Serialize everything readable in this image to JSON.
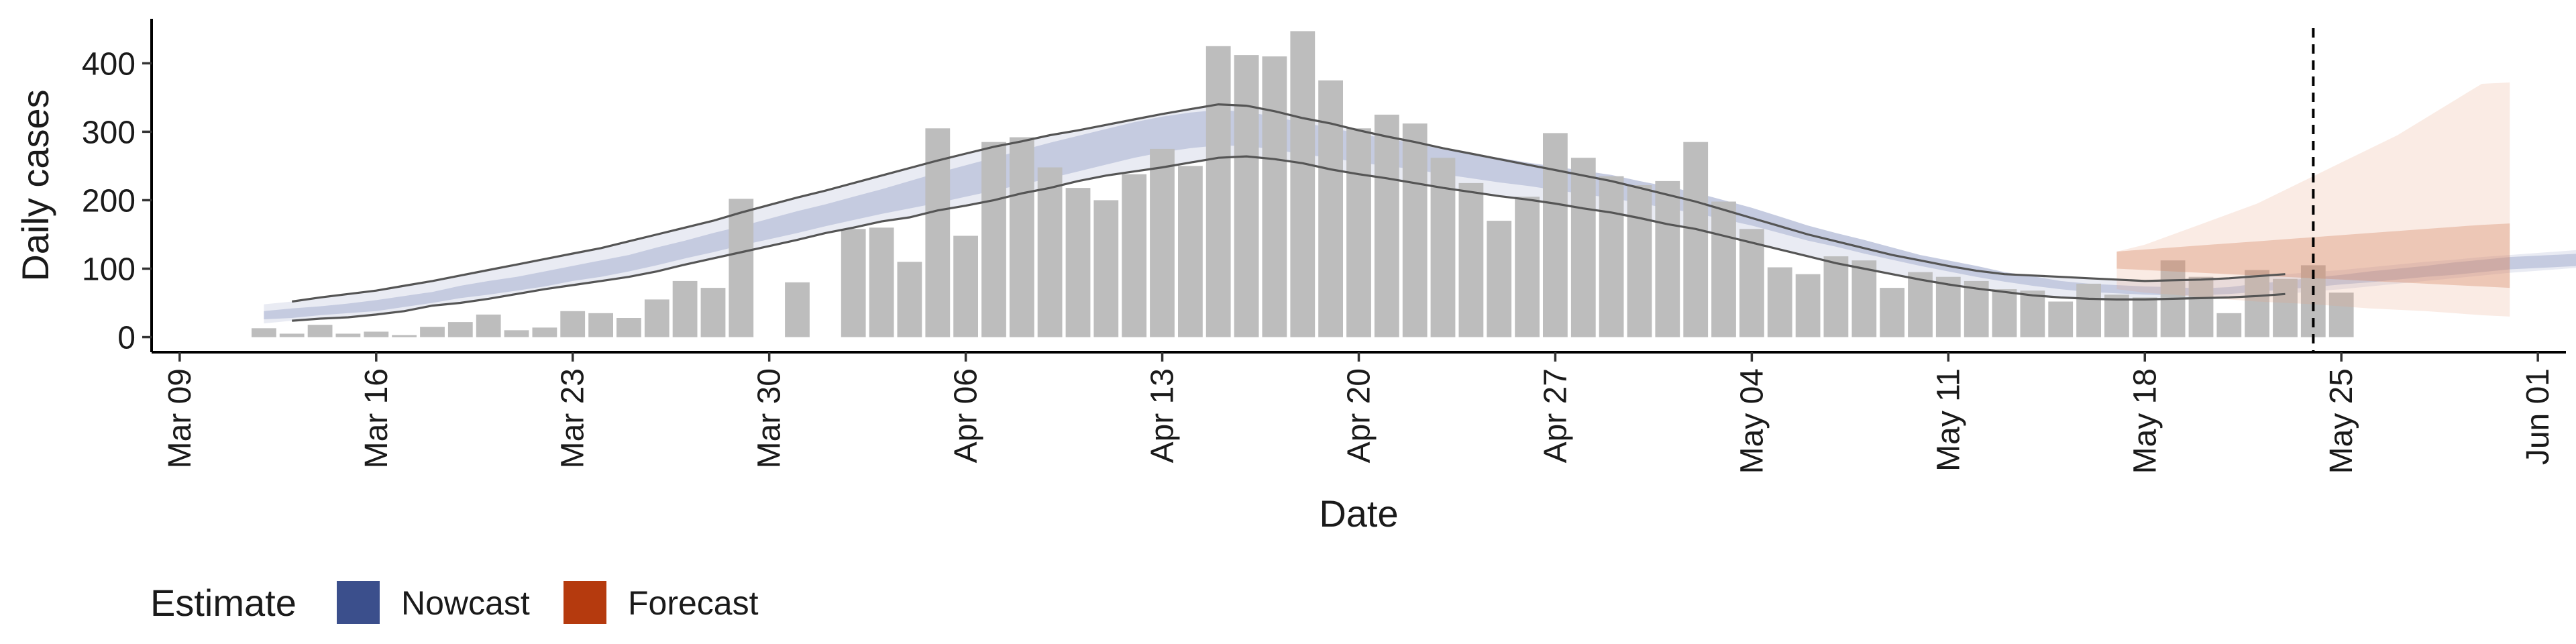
{
  "chart_data": {
    "type": "bar",
    "xlabel": "Date",
    "ylabel": "Daily cases",
    "ylim": [
      -22,
      465
    ],
    "x_domain": [
      "2020-03-08",
      "2020-06-02"
    ],
    "y_ticks": [
      0,
      100,
      200,
      300,
      400
    ],
    "x_ticks": [
      {
        "date": "2020-03-09",
        "label": "Mar 09"
      },
      {
        "date": "2020-03-16",
        "label": "Mar 16"
      },
      {
        "date": "2020-03-23",
        "label": "Mar 23"
      },
      {
        "date": "2020-03-30",
        "label": "Mar 30"
      },
      {
        "date": "2020-04-06",
        "label": "Apr 06"
      },
      {
        "date": "2020-04-13",
        "label": "Apr 13"
      },
      {
        "date": "2020-04-20",
        "label": "Apr 20"
      },
      {
        "date": "2020-04-27",
        "label": "Apr 27"
      },
      {
        "date": "2020-05-04",
        "label": "May 04"
      },
      {
        "date": "2020-05-11",
        "label": "May 11"
      },
      {
        "date": "2020-05-18",
        "label": "May 18"
      },
      {
        "date": "2020-05-25",
        "label": "May 25"
      },
      {
        "date": "2020-06-01",
        "label": "Jun 01"
      }
    ],
    "observed_cases": {
      "first_date": "2020-03-12",
      "values": [
        13,
        5,
        18,
        5,
        8,
        3,
        15,
        22,
        33,
        10,
        14,
        38,
        35,
        28,
        55,
        82,
        72,
        202,
        0,
        80,
        0,
        158,
        160,
        110,
        305,
        148,
        285,
        292,
        248,
        218,
        200,
        238,
        275,
        250,
        425,
        412,
        410,
        447,
        375,
        305,
        325,
        312,
        262,
        225,
        170,
        205,
        298,
        262,
        235,
        222,
        228,
        285,
        198,
        158,
        102,
        92,
        118,
        112,
        72,
        95,
        88,
        82,
        70,
        68,
        52,
        78,
        62,
        58,
        112,
        88,
        35,
        98,
        85,
        105,
        65
      ]
    },
    "series": [
      {
        "name": "Nowcast",
        "color": "#3B4F8C",
        "start_date": "2020-03-12",
        "median": [
          32,
          35,
          38,
          42,
          46,
          52,
          58,
          66,
          72,
          78,
          85,
          93,
          100,
          108,
          118,
          128,
          138,
          148,
          158,
          168,
          178,
          188,
          198,
          208,
          218,
          228,
          238,
          248,
          258,
          268,
          278,
          288,
          296,
          302,
          306,
          304,
          298,
          290,
          284,
          276,
          270,
          264,
          256,
          250,
          244,
          238,
          232,
          226,
          220,
          212,
          204,
          196,
          186,
          176,
          164,
          152,
          142,
          132,
          122,
          112,
          104,
          96,
          88,
          82,
          76,
          72,
          70,
          68,
          67,
          66,
          68,
          72,
          76,
          80,
          84,
          88,
          92,
          96,
          100,
          104,
          108,
          110,
          112,
          114,
          116,
          118,
          120,
          122
        ],
        "inner_low": [
          26,
          28,
          32,
          35,
          38,
          44,
          50,
          57,
          62,
          68,
          74,
          82,
          88,
          96,
          105,
          115,
          124,
          134,
          143,
          152,
          162,
          171,
          180,
          188,
          196,
          205,
          214,
          223,
          232,
          242,
          252,
          262,
          270,
          276,
          280,
          279,
          274,
          267,
          262,
          255,
          250,
          245,
          238,
          232,
          226,
          221,
          215,
          209,
          203,
          196,
          188,
          181,
          172,
          163,
          152,
          141,
          132,
          122,
          113,
          104,
          96,
          88,
          81,
          75,
          70,
          66,
          64,
          62,
          61,
          61,
          63,
          66,
          70,
          73,
          77,
          80,
          84,
          88,
          91,
          95,
          99,
          101,
          103,
          105,
          106,
          108,
          110,
          112
        ],
        "inner_high": [
          38,
          42,
          45,
          49,
          54,
          60,
          66,
          75,
          82,
          88,
          96,
          104,
          112,
          120,
          131,
          141,
          152,
          162,
          173,
          184,
          194,
          205,
          216,
          228,
          240,
          251,
          262,
          273,
          284,
          294,
          304,
          314,
          322,
          328,
          332,
          329,
          322,
          313,
          306,
          297,
          290,
          283,
          274,
          268,
          262,
          255,
          249,
          243,
          237,
          228,
          220,
          211,
          200,
          189,
          176,
          163,
          152,
          142,
          131,
          120,
          112,
          104,
          95,
          89,
          82,
          78,
          76,
          74,
          73,
          71,
          73,
          78,
          82,
          87,
          91,
          96,
          100,
          104,
          109,
          113,
          117,
          119,
          121,
          123,
          126,
          128,
          130,
          132
        ],
        "outer_low": [
          20,
          24,
          27,
          29,
          33,
          38,
          46,
          50,
          56,
          63,
          70,
          76,
          82,
          88,
          96,
          106,
          115,
          124,
          133,
          142,
          152,
          160,
          169,
          175,
          185,
          192,
          200,
          210,
          218,
          228,
          236,
          242,
          248,
          255,
          262,
          264,
          260,
          254,
          245,
          238,
          232,
          225,
          218,
          212,
          206,
          201,
          195,
          188,
          182,
          174,
          165,
          158,
          148,
          138,
          128,
          118,
          108,
          100,
          92,
          84,
          77,
          71,
          66,
          61,
          58,
          56,
          55,
          55,
          56,
          57,
          58,
          60,
          63,
          67,
          70,
          74,
          78,
          82,
          86,
          90,
          94,
          97,
          100,
          103,
          106,
          108,
          110,
          112
        ],
        "outer_high": [
          48,
          52,
          58,
          63,
          68,
          75,
          82,
          90,
          98,
          106,
          114,
          122,
          130,
          140,
          150,
          160,
          170,
          182,
          193,
          204,
          214,
          225,
          236,
          247,
          258,
          268,
          278,
          286,
          295,
          302,
          310,
          318,
          326,
          333,
          340,
          338,
          330,
          320,
          312,
          302,
          293,
          285,
          276,
          268,
          260,
          252,
          244,
          236,
          228,
          218,
          208,
          198,
          186,
          174,
          162,
          150,
          140,
          130,
          120,
          112,
          104,
          97,
          92,
          90,
          88,
          86,
          84,
          82,
          83,
          84,
          86,
          89,
          92,
          95,
          98,
          102,
          106,
          110,
          113,
          117,
          120,
          123,
          126,
          129,
          132,
          135,
          138,
          140
        ],
        "outer_stroke_start": "2020-03-13",
        "outer_stroke_len": 72
      },
      {
        "name": "Forecast",
        "color": "#B53A0E",
        "start_date": "2020-05-17",
        "outer_low": [
          70,
          65,
          62,
          58,
          55,
          52,
          50,
          48,
          45,
          42,
          40,
          38,
          35,
          32,
          30
        ],
        "outer_high": [
          125,
          135,
          150,
          165,
          180,
          195,
          215,
          235,
          255,
          275,
          295,
          320,
          345,
          370,
          372
        ],
        "inner_low": [
          100,
          98,
          96,
          94,
          92,
          90,
          88,
          86,
          84,
          82,
          80,
          78,
          76,
          74,
          72
        ],
        "inner_high": [
          125,
          128,
          131,
          134,
          137,
          140,
          143,
          146,
          149,
          152,
          155,
          158,
          161,
          164,
          166
        ]
      }
    ],
    "vline": {
      "date": "2020-05-24",
      "style": "dashed"
    },
    "legend": {
      "title": "Estimate",
      "position": "bottom-left",
      "items": [
        "Nowcast",
        "Forecast"
      ]
    },
    "bar_color": "#bdbdbd",
    "grid": false
  }
}
